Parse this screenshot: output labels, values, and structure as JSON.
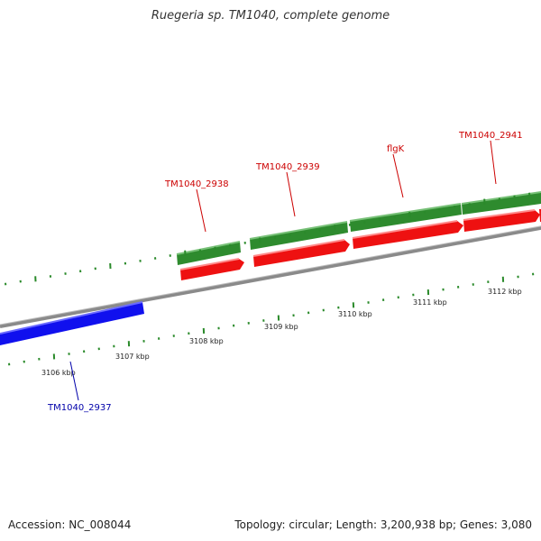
{
  "title": "Ruegeria sp. TM1040, complete genome",
  "footer": {
    "accession": "Accession: NC_008044",
    "topology": "Topology: circular; Length: 3,200,938 bp; Genes: 3,080"
  },
  "colors": {
    "backbone": "#8a8a8a",
    "forward_gene": "#2e8b2e",
    "forward_cds": "#ee1111",
    "reverse_gene": "#1010ee",
    "forward_label": "#cc0000",
    "reverse_label": "#0000aa",
    "tick": "#2a8a2a"
  },
  "ticks": {
    "labels": [
      "3106 kbp",
      "3107 kbp",
      "3108 kbp",
      "3109 kbp",
      "3110 kbp",
      "3111 kbp",
      "3112 kbp"
    ]
  },
  "genes": [
    {
      "name": "TM1040_2937",
      "strand": "reverse"
    },
    {
      "name": "TM1040_2938",
      "strand": "forward"
    },
    {
      "name": "TM1040_2939",
      "strand": "forward"
    },
    {
      "name": "flgK",
      "strand": "forward"
    },
    {
      "name": "TM1040_2941",
      "strand": "forward"
    }
  ]
}
